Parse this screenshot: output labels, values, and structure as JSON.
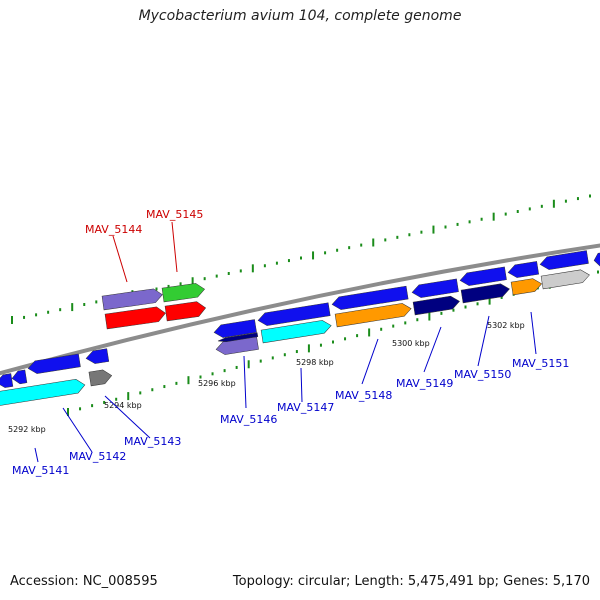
{
  "title": "Mycobacterium avium 104, complete genome",
  "footer": {
    "accession": "Accession: NC_008595",
    "summary": "Topology: circular; Length: 5,475,491 bp; Genes: 5,170"
  },
  "colors": {
    "backbone": "#8c8c8c",
    "dots": "#1a8c1a",
    "label_forward": "#cc0000",
    "label_reverse": "#0000cc",
    "blue": "#1010ee",
    "navy": "#000080",
    "cyan": "#00ffff",
    "orange": "#ff9900",
    "red": "#ff0000",
    "green": "#33cc33",
    "lavender": "#7b68cc",
    "gray": "#777777",
    "silver": "#cccccc"
  },
  "ticks": [
    {
      "label": "5292 kbp"
    },
    {
      "label": "5294 kbp"
    },
    {
      "label": "5296 kbp"
    },
    {
      "label": "5298 kbp"
    },
    {
      "label": "5300 kbp"
    },
    {
      "label": "5302 kbp"
    }
  ],
  "forward_genes": [
    {
      "label": "MAV_5144"
    },
    {
      "label": "MAV_5145"
    }
  ],
  "reverse_genes": [
    {
      "label": "MAV_5141"
    },
    {
      "label": "MAV_5142"
    },
    {
      "label": "MAV_5143"
    },
    {
      "label": "MAV_5146"
    },
    {
      "label": "MAV_5147"
    },
    {
      "label": "MAV_5148"
    },
    {
      "label": "MAV_5149"
    },
    {
      "label": "MAV_5150"
    },
    {
      "label": "MAV_5151"
    }
  ]
}
